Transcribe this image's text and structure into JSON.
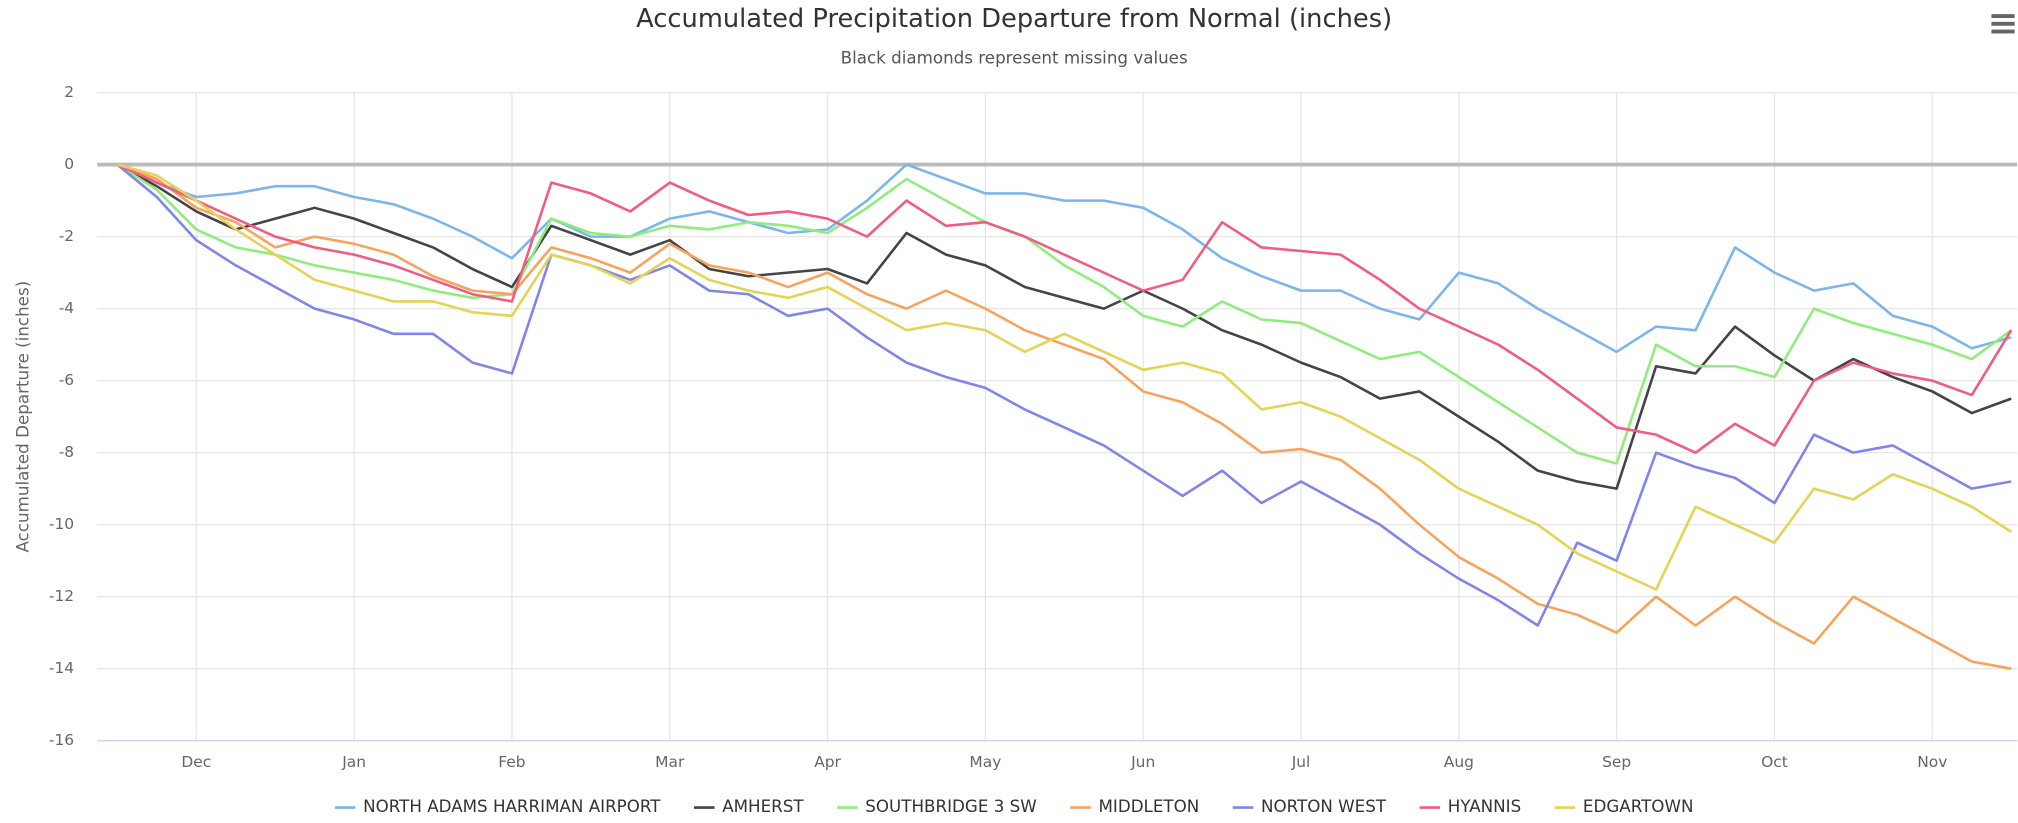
{
  "chart_data": {
    "type": "line",
    "title": "Accumulated Precipitation Departure from Normal (inches)",
    "subtitle": "Black diamonds represent missing values",
    "y_label": "Accumulated Departure (inches)",
    "categories": [
      null,
      null,
      "Dec",
      null,
      null,
      null,
      "Jan",
      null,
      null,
      null,
      "Feb",
      null,
      null,
      null,
      "Mar",
      null,
      null,
      null,
      "Apr",
      null,
      null,
      null,
      "May",
      null,
      null,
      null,
      "Jun",
      null,
      null,
      null,
      "Jul",
      null,
      null,
      null,
      "Aug",
      null,
      null,
      null,
      "Sep",
      null,
      null,
      null,
      "Oct",
      null,
      null,
      null,
      "Nov",
      null,
      null
    ],
    "ylim": [
      -16,
      2
    ],
    "yticks": [
      -16,
      -14,
      -12,
      -10,
      -8,
      -6,
      -4,
      -2,
      0,
      2
    ],
    "grid": true,
    "series": [
      {
        "name": "NORTH ADAMS HARRIMAN AIRPORT",
        "color": "#7cb5ec",
        "values": [
          0,
          -0.5,
          -0.9,
          -0.8,
          -0.6,
          -0.6,
          -0.9,
          -1.1,
          -1.5,
          -2.0,
          -2.6,
          -1.5,
          -2.0,
          -2.0,
          -1.5,
          -1.3,
          -1.6,
          -1.9,
          -1.8,
          -1.0,
          0,
          -0.4,
          -0.8,
          -0.8,
          -1.0,
          -1.0,
          -1.2,
          -1.8,
          -2.6,
          -3.1,
          -3.5,
          -3.5,
          -4.0,
          -4.3,
          -3.0,
          -3.3,
          -4.0,
          -4.6,
          -5.2,
          -4.5,
          -4.6,
          -2.3,
          -3.0,
          -3.5,
          -3.3,
          -4.2,
          -4.5,
          -5.1,
          -4.8
        ]
      },
      {
        "name": "AMHERST",
        "color": "#434348",
        "values": [
          0,
          -0.6,
          -1.3,
          -1.8,
          -1.5,
          -1.2,
          -1.5,
          -1.9,
          -2.3,
          -2.9,
          -3.4,
          -1.7,
          -2.1,
          -2.5,
          -2.1,
          -2.9,
          -3.1,
          -3.0,
          -2.9,
          -3.3,
          -1.9,
          -2.5,
          -2.8,
          -3.4,
          -3.7,
          -4.0,
          -3.5,
          -4.0,
          -4.6,
          -5.0,
          -5.5,
          -5.9,
          -6.5,
          -6.3,
          -7.0,
          -7.7,
          -8.5,
          -8.8,
          -9.0,
          -5.6,
          -5.8,
          -4.5,
          -5.3,
          -6.0,
          -5.4,
          -5.9,
          -6.3,
          -6.9,
          -6.5
        ]
      },
      {
        "name": "SOUTHBRIDGE 3 SW",
        "color": "#90ed7d",
        "values": [
          0,
          -0.7,
          -1.8,
          -2.3,
          -2.5,
          -2.8,
          -3.0,
          -3.2,
          -3.5,
          -3.7,
          -3.6,
          -1.5,
          -1.9,
          -2.0,
          -1.7,
          -1.8,
          -1.6,
          -1.7,
          -1.9,
          -1.2,
          -0.4,
          -1.0,
          -1.6,
          -2.0,
          -2.8,
          -3.4,
          -4.2,
          -4.5,
          -3.8,
          -4.3,
          -4.4,
          -4.9,
          -5.4,
          -5.2,
          -5.9,
          -6.6,
          -7.3,
          -8.0,
          -8.3,
          -5.0,
          -5.6,
          -5.6,
          -5.9,
          -4.0,
          -4.4,
          -4.7,
          -5.0,
          -5.4,
          -4.6
        ]
      },
      {
        "name": "MIDDLETON",
        "color": "#f7a35c",
        "values": [
          0,
          -0.4,
          -1.2,
          -1.6,
          -2.3,
          -2.0,
          -2.2,
          -2.5,
          -3.1,
          -3.5,
          -3.6,
          -2.3,
          -2.6,
          -3.0,
          -2.2,
          -2.8,
          -3.0,
          -3.4,
          -3.0,
          -3.6,
          -4.0,
          -3.5,
          -4.0,
          -4.6,
          -5.0,
          -5.4,
          -6.3,
          -6.6,
          -7.2,
          -8.0,
          -7.9,
          -8.2,
          -9.0,
          -10.0,
          -10.9,
          -11.5,
          -12.2,
          -12.5,
          -13.0,
          -12.0,
          -12.8,
          -12.0,
          -12.7,
          -13.3,
          -12.0,
          -12.6,
          -13.2,
          -13.8,
          -14.0
        ]
      },
      {
        "name": "NORTON WEST",
        "color": "#8085e9",
        "values": [
          0,
          -0.9,
          -2.1,
          -2.8,
          -3.4,
          -4.0,
          -4.3,
          -4.7,
          -4.7,
          -5.5,
          -5.8,
          -2.5,
          -2.8,
          -3.2,
          -2.8,
          -3.5,
          -3.6,
          -4.2,
          -4.0,
          -4.8,
          -5.5,
          -5.9,
          -6.2,
          -6.8,
          -7.3,
          -7.8,
          -8.5,
          -9.2,
          -8.5,
          -9.4,
          -8.8,
          -9.4,
          -10.0,
          -10.8,
          -11.5,
          -12.1,
          -12.8,
          -10.5,
          -11.0,
          -8.0,
          -8.4,
          -8.7,
          -9.4,
          -7.5,
          -8.0,
          -7.8,
          -8.4,
          -9.0,
          -8.8
        ]
      },
      {
        "name": "HYANNIS",
        "color": "#f15c80",
        "values": [
          0,
          -0.5,
          -1.0,
          -1.5,
          -2.0,
          -2.3,
          -2.5,
          -2.8,
          -3.2,
          -3.6,
          -3.8,
          -0.5,
          -0.8,
          -1.3,
          -0.5,
          -1.0,
          -1.4,
          -1.3,
          -1.5,
          -2.0,
          -1.0,
          -1.7,
          -1.6,
          -2.0,
          -2.5,
          -3.0,
          -3.5,
          -3.2,
          -1.6,
          -2.3,
          -2.4,
          -2.5,
          -3.2,
          -4.0,
          -4.5,
          -5.0,
          -5.7,
          -6.5,
          -7.3,
          -7.5,
          -8.0,
          -7.2,
          -7.8,
          -6.0,
          -5.5,
          -5.8,
          -6.0,
          -6.4,
          -4.6
        ]
      },
      {
        "name": "EDGARTOWN",
        "color": "#e4d354",
        "values": [
          0,
          -0.3,
          -1.0,
          -1.8,
          -2.5,
          -3.2,
          -3.5,
          -3.8,
          -3.8,
          -4.1,
          -4.2,
          -2.5,
          -2.8,
          -3.3,
          -2.6,
          -3.2,
          -3.5,
          -3.7,
          -3.4,
          -4.0,
          -4.6,
          -4.4,
          -4.6,
          -5.2,
          -4.7,
          -5.2,
          -5.7,
          -5.5,
          -5.8,
          -6.8,
          -6.6,
          -7.0,
          -7.6,
          -8.2,
          -9.0,
          -9.5,
          -10.0,
          -10.8,
          -11.3,
          -11.8,
          -9.5,
          -10.0,
          -10.5,
          -9.0,
          -9.3,
          -8.6,
          -9.0,
          -9.5,
          -10.2
        ]
      }
    ]
  }
}
